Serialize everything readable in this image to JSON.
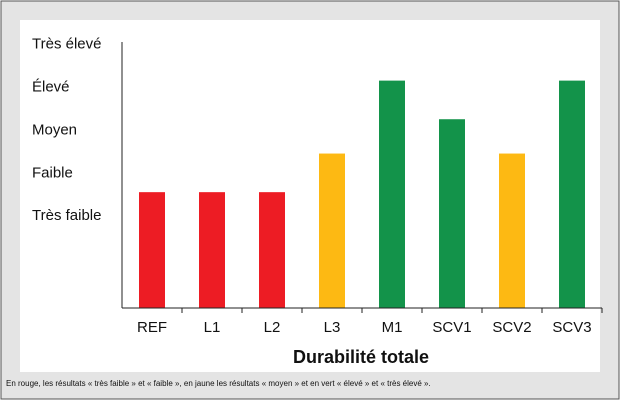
{
  "chart_data": {
    "type": "bar",
    "title": "Durabilité totale",
    "categories": [
      "REF",
      "L1",
      "L2",
      "L3",
      "M1",
      "SCV1",
      "SCV2",
      "SCV3"
    ],
    "values": [
      2.7,
      2.7,
      2.7,
      3.6,
      5.3,
      4.4,
      3.6,
      5.3
    ],
    "colors": [
      "#ed1c24",
      "#ed1c24",
      "#ed1c24",
      "#fdb913",
      "#13934a",
      "#13934a",
      "#fdb913",
      "#13934a"
    ],
    "ylim": [
      0,
      6.2
    ],
    "yticks": [
      {
        "value": 2,
        "label": "Très faible"
      },
      {
        "value": 3,
        "label": "Faible"
      },
      {
        "value": 4,
        "label": "Moyen"
      },
      {
        "value": 5,
        "label": "Élevé"
      },
      {
        "value": 6,
        "label": "Très élevé"
      }
    ],
    "grid": false,
    "note": "En rouge, les résultats « très faible » et « faible », en jaune les résultats « moyen » et en vert « élevé » et « très élevé »."
  }
}
